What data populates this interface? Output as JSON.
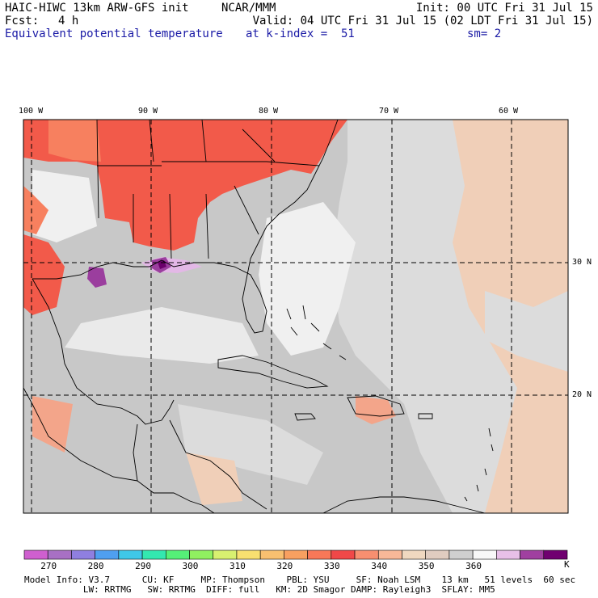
{
  "header": {
    "model": "HAIC-HIWC 13km ARW-GFS init",
    "org": "NCAR/MMM",
    "init": "Init: 00 UTC Fri 31 Jul 15",
    "fcst_label": "Fcst:",
    "fcst_value": "4 h",
    "valid": "Valid: 04 UTC Fri 31 Jul 15 (02 LDT Fri 31 Jul 15)",
    "field": "Equivalent potential temperature",
    "level": "at k-index =  51",
    "smoothing": "sm= 2"
  },
  "map": {
    "lon_labels": [
      "100 W",
      "90 W",
      "80 W",
      "70 W",
      "60 W"
    ],
    "lat_labels": [
      "30 N",
      "20 N"
    ],
    "colors": {
      "hot": "#f25a4a",
      "hot2": "#f7805f",
      "salmon": "#f3a58a",
      "tan": "#f0cfb8",
      "mid_gray": "#c8c8c8",
      "light_gray": "#dcdcdc",
      "pale": "#f0f0f0",
      "lavender": "#e3b8e6",
      "purple": "#9b3e9e",
      "dark_purple": "#6b006b"
    }
  },
  "colorbar": {
    "colors": [
      "#cf5fcf",
      "#a870c4",
      "#8f7fe0",
      "#4f9ff0",
      "#3fc8e8",
      "#33e8b0",
      "#55f078",
      "#90f060",
      "#d8f070",
      "#f8e070",
      "#f8c070",
      "#f8a060",
      "#f87858",
      "#f04848",
      "#f88f70",
      "#f8b898",
      "#f0d8c0",
      "#e0ccc0",
      "#cfcfcf",
      "#f8f8f8",
      "#e8c0e8",
      "#a040a0",
      "#700070"
    ],
    "tick_labels": [
      "270",
      "280",
      "290",
      "300",
      "310",
      "320",
      "330",
      "340",
      "350",
      "360"
    ],
    "unit": "K"
  },
  "footer": {
    "line1": "Model Info: V3.7      CU: KF     MP: Thompson    PBL: YSU     SF: Noah LSM    13 km   51 levels  60 sec",
    "line2": "           LW: RRTMG   SW: RRTMG  DIFF: full   KM: 2D Smagor DAMP: Rayleigh3  SFLAY: MM5"
  }
}
